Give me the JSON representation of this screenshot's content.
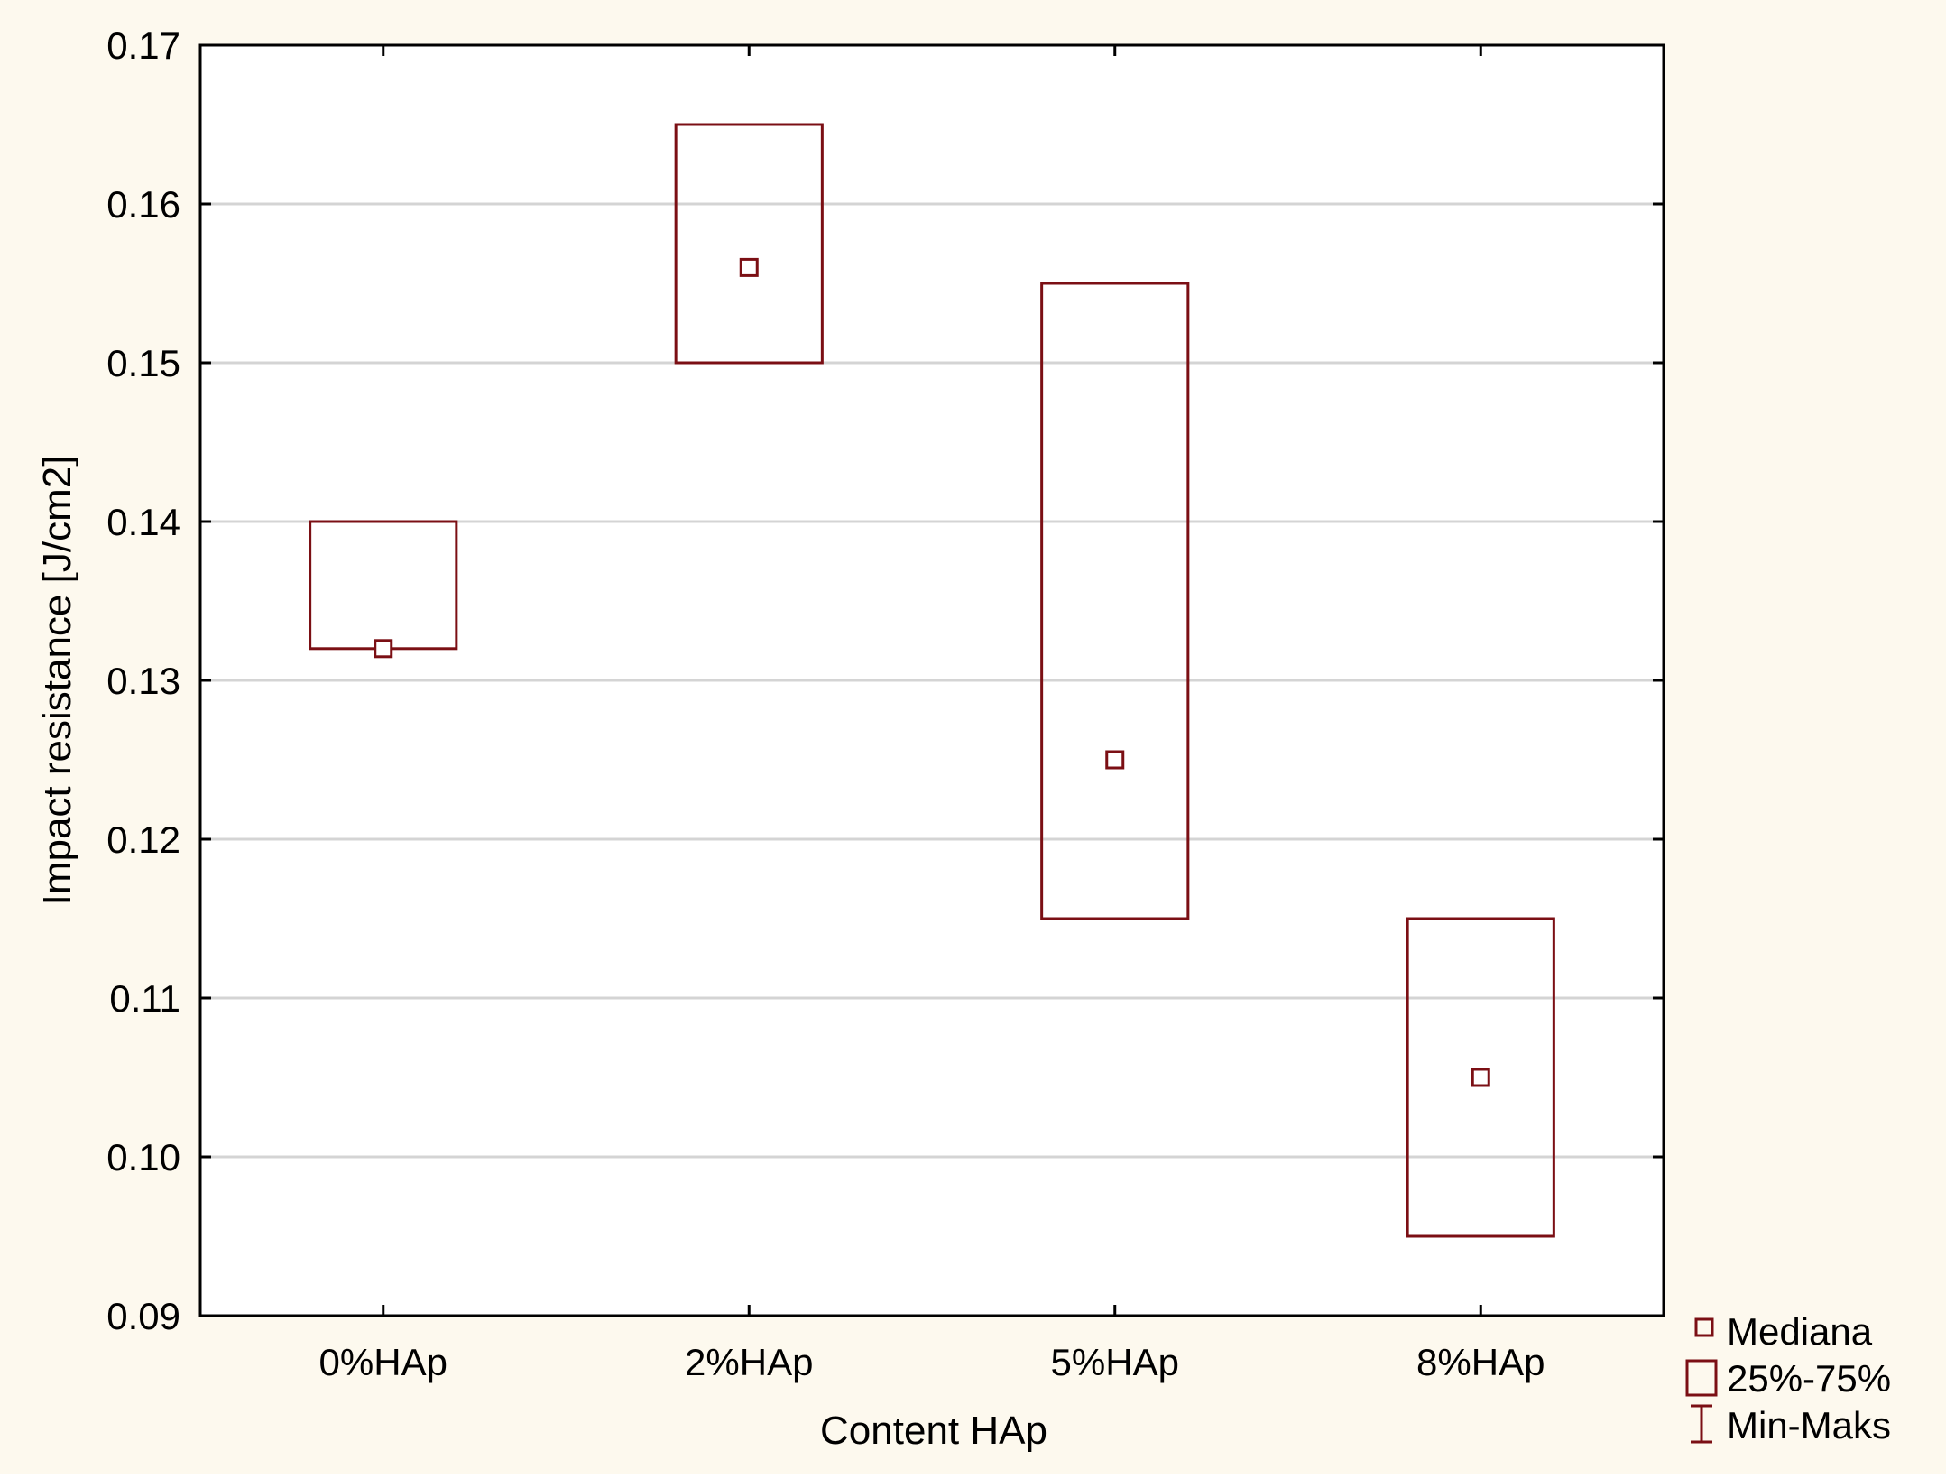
{
  "chart_data": {
    "type": "box",
    "title": "",
    "xlabel": "Content HAp",
    "ylabel": "Impact resistance [J/cm2]",
    "categories": [
      "0%HAp",
      "2%HAp",
      "5%HAp",
      "8%HAp"
    ],
    "median": [
      0.132,
      0.156,
      0.125,
      0.105
    ],
    "q1": [
      0.132,
      0.15,
      0.115,
      0.095
    ],
    "q3": [
      0.14,
      0.165,
      0.155,
      0.115
    ],
    "min": [
      0.132,
      0.15,
      0.115,
      0.095
    ],
    "max": [
      0.14,
      0.165,
      0.155,
      0.115
    ],
    "ylim": [
      0.09,
      0.17
    ],
    "yticks": [
      "0.09",
      "0.10",
      "0.11",
      "0.12",
      "0.13",
      "0.14",
      "0.15",
      "0.16",
      "0.17"
    ],
    "grid": true,
    "legend_position": "bottom-right",
    "legend": [
      "Mediana",
      "25%-75%",
      "Min-Maks"
    ],
    "colors": {
      "series": "#7b0f14",
      "page_background": "#fdf9ee",
      "plot_background": "#ffffff",
      "gridline": "#d4d4d4",
      "axis": "#000000"
    }
  }
}
